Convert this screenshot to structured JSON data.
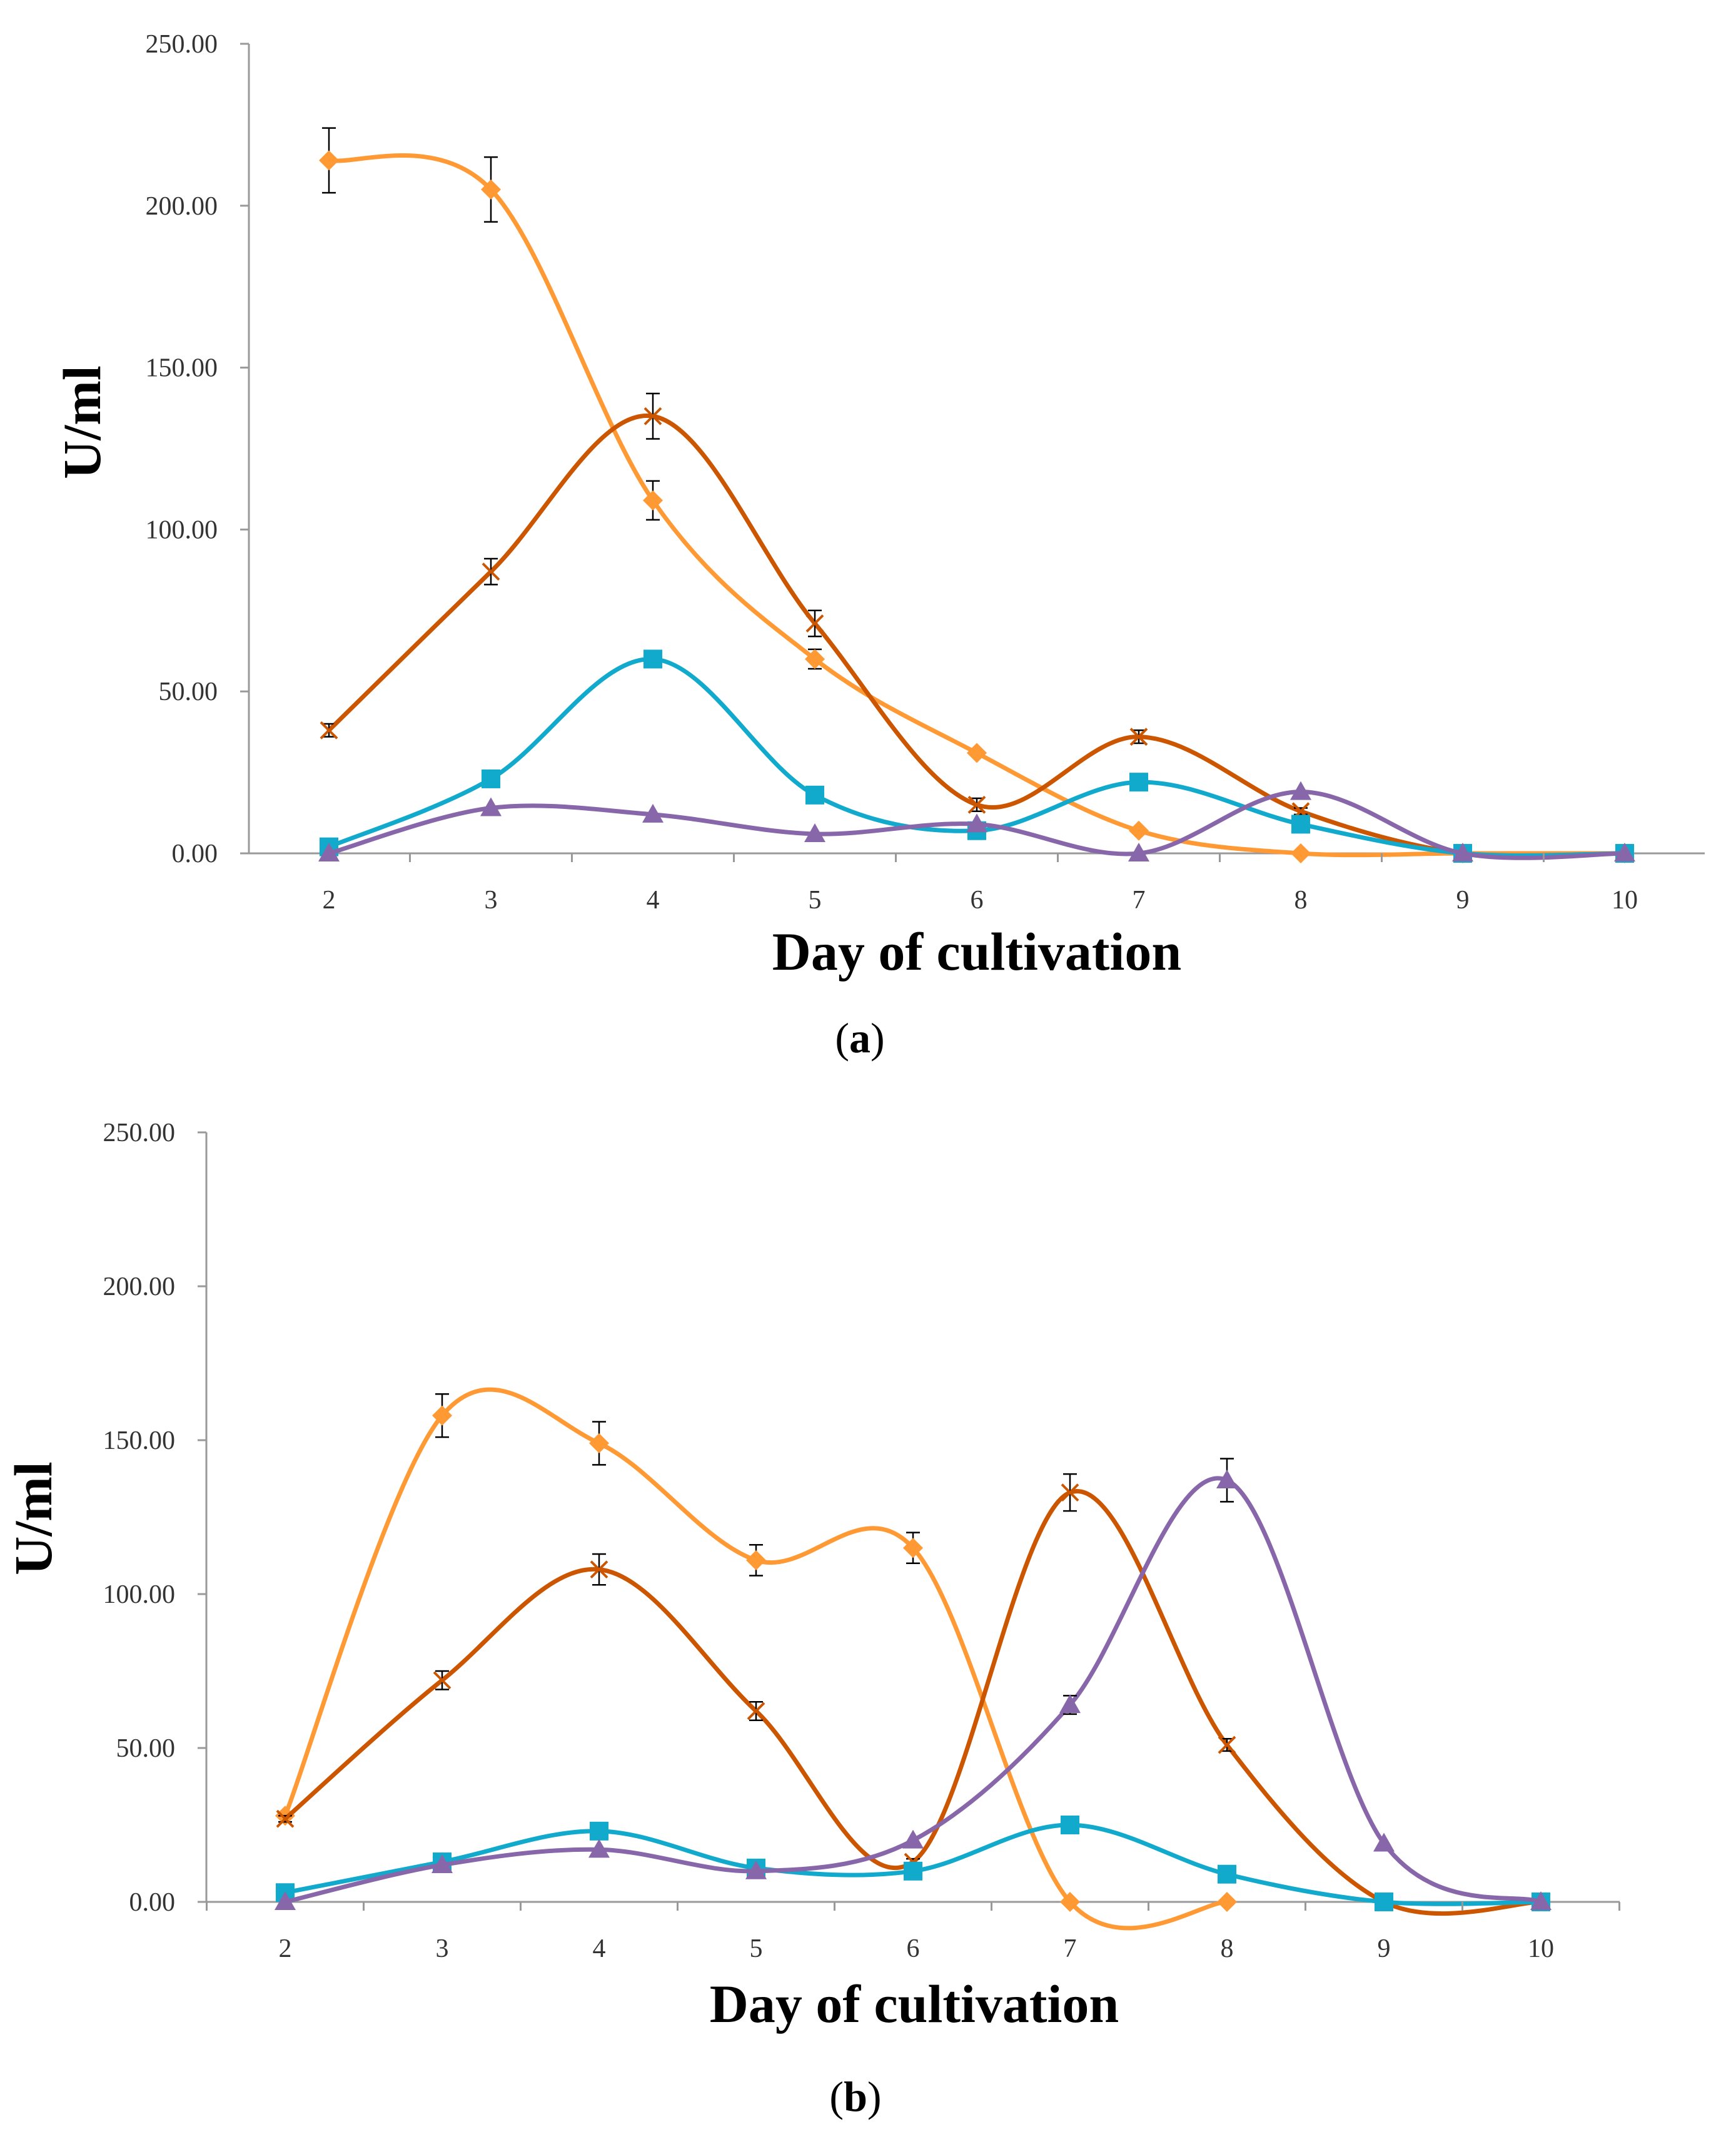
{
  "colors": {
    "orange": "#FF9933",
    "rust": "#CC5500",
    "teal": "#11AACC",
    "purple": "#8866AA",
    "axis": "#999999",
    "error_bar": "#000000"
  },
  "chart_data": [
    {
      "panel": "a",
      "panel_label": "a",
      "type": "line",
      "xlabel": "Day of cultivation",
      "ylabel": "U/ml",
      "ylim": [
        0,
        250
      ],
      "yticks": [
        "0.00",
        "50.00",
        "100.00",
        "150.00",
        "200.00",
        "250.00"
      ],
      "categories": [
        "2",
        "3",
        "4",
        "5",
        "6",
        "7",
        "8",
        "9",
        "10"
      ],
      "series": [
        {
          "name": "orange-diamond",
          "color": "orange",
          "marker": "diamond",
          "values": [
            214,
            205,
            109,
            60,
            31,
            7,
            0,
            0,
            0
          ],
          "errors": [
            10,
            10,
            6,
            3,
            0,
            0,
            0,
            0,
            0
          ]
        },
        {
          "name": "rust-star",
          "color": "rust",
          "marker": "star",
          "values": [
            38,
            87,
            135,
            71,
            15,
            36,
            13,
            0,
            0
          ],
          "errors": [
            2,
            4,
            7,
            4,
            2,
            2,
            1,
            0,
            0
          ]
        },
        {
          "name": "teal-square",
          "color": "teal",
          "marker": "square",
          "values": [
            2,
            23,
            60,
            18,
            7,
            22,
            9,
            0,
            0
          ],
          "errors": [
            0,
            0,
            2,
            0,
            0,
            0,
            0,
            0,
            0
          ]
        },
        {
          "name": "purple-triangle",
          "color": "purple",
          "marker": "triangle",
          "values": [
            0,
            14,
            12,
            6,
            9,
            0,
            19,
            0,
            0
          ],
          "errors": [
            0,
            0,
            0,
            0,
            0,
            0,
            0,
            0,
            0
          ]
        }
      ]
    },
    {
      "panel": "b",
      "panel_label": "b",
      "type": "line",
      "xlabel": "Day of cultivation",
      "ylabel": "U/ml",
      "ylim": [
        0,
        250
      ],
      "yticks": [
        "0.00",
        "50.00",
        "100.00",
        "150.00",
        "200.00",
        "250.00"
      ],
      "categories": [
        "2",
        "3",
        "4",
        "5",
        "6",
        "7",
        "8",
        "9",
        "10"
      ],
      "series": [
        {
          "name": "orange-diamond",
          "color": "orange",
          "marker": "diamond",
          "values": [
            28,
            158,
            149,
            111,
            115,
            0,
            0,
            null,
            null
          ],
          "errors": [
            0,
            7,
            7,
            5,
            5,
            0,
            0,
            0,
            0
          ]
        },
        {
          "name": "rust-star",
          "color": "rust",
          "marker": "star",
          "values": [
            27,
            72,
            108,
            62,
            13,
            133,
            51,
            0,
            0
          ],
          "errors": [
            1,
            3,
            5,
            3,
            1,
            6,
            2,
            0,
            0
          ]
        },
        {
          "name": "teal-square",
          "color": "teal",
          "marker": "square",
          "values": [
            3,
            13,
            23,
            11,
            10,
            25,
            9,
            0,
            0
          ],
          "errors": [
            0,
            0,
            0,
            0,
            0,
            0,
            0,
            0,
            0
          ]
        },
        {
          "name": "purple-triangle",
          "color": "purple",
          "marker": "triangle",
          "values": [
            0,
            12,
            17,
            10,
            20,
            64,
            137,
            19,
            0
          ],
          "errors": [
            0,
            0,
            0,
            0,
            0,
            3,
            7,
            0,
            0
          ]
        }
      ]
    }
  ]
}
